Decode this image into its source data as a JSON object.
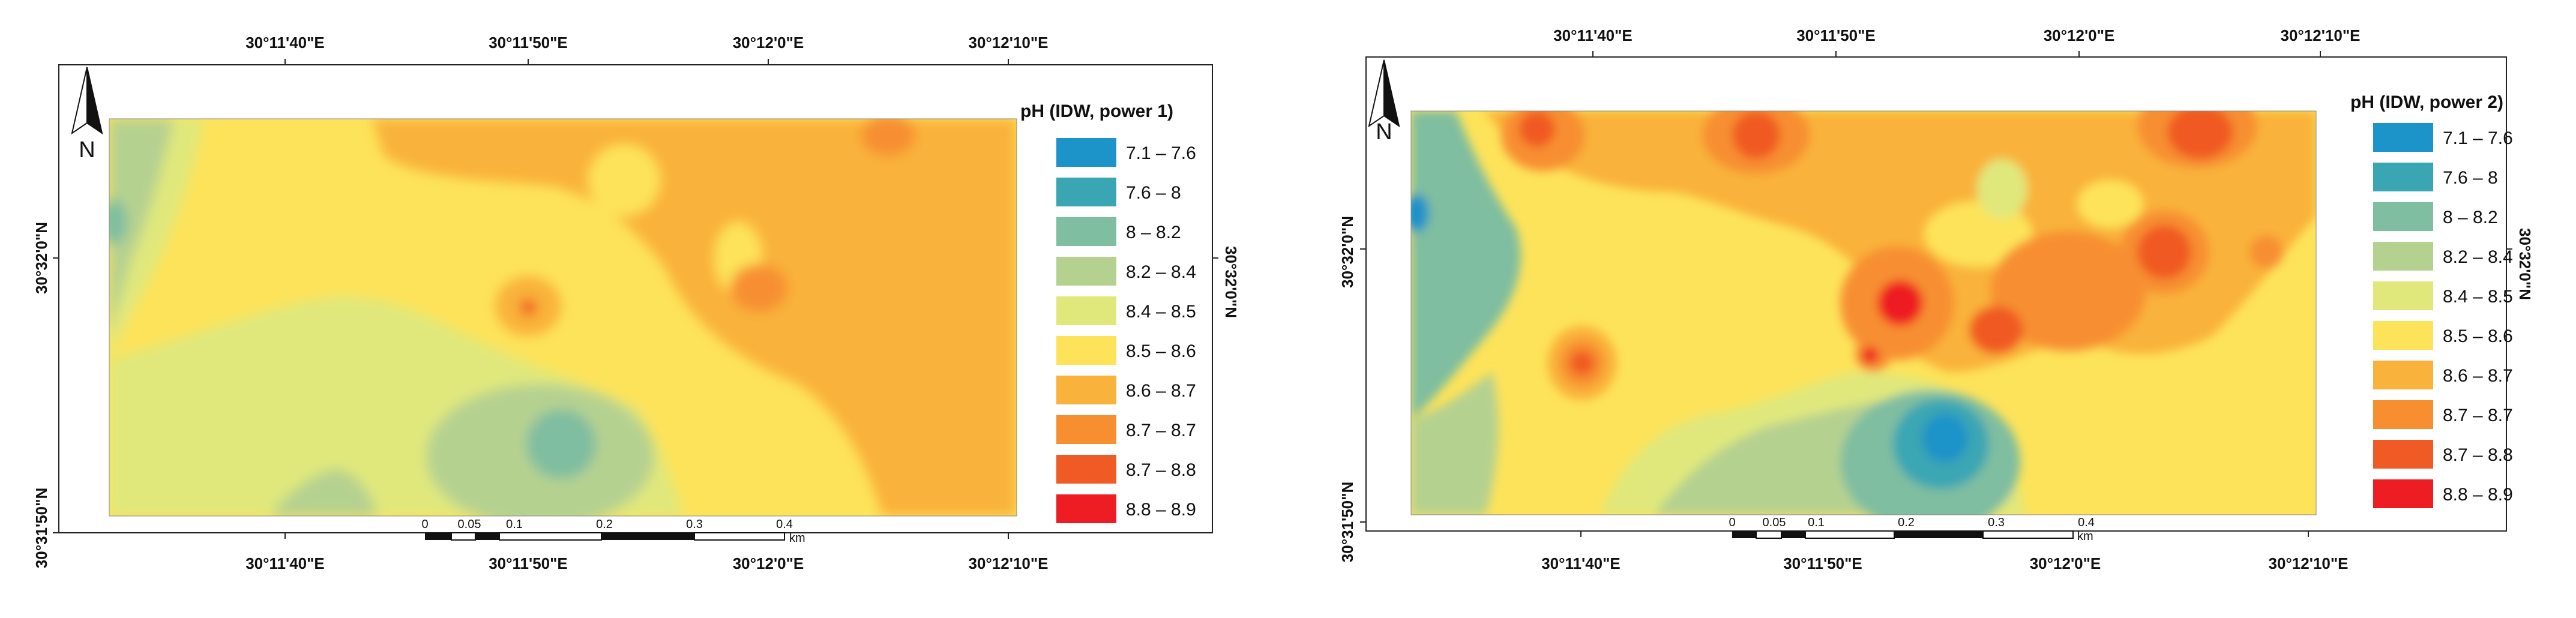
{
  "maps": [
    {
      "id": "map-1",
      "legend": {
        "title": "pH (IDW, power 1)",
        "classes": [
          {
            "label": "7.1 – 7.6",
            "color": "#1c93c9"
          },
          {
            "label": "7.6 – 8",
            "color": "#3aa6b4"
          },
          {
            "label": "8 – 8.2",
            "color": "#7fbea0"
          },
          {
            "label": "8.2 – 8.4",
            "color": "#b5d190"
          },
          {
            "label": "8.4 – 8.5",
            "color": "#e0e87c"
          },
          {
            "label": "8.5 – 8.6",
            "color": "#fde35a"
          },
          {
            "label": "8.6 – 8.7",
            "color": "#f9b23b"
          },
          {
            "label": "8.7 – 8.7",
            "color": "#f78f30"
          },
          {
            "label": "8.7 – 8.8",
            "color": "#f05a24"
          },
          {
            "label": "8.8 – 8.9",
            "color": "#ee1d23"
          }
        ]
      },
      "top_ticks": [
        "30°11'40\"E",
        "30°11'50\"E",
        "30°12'0\"E",
        "30°12'10\"E"
      ],
      "bottom_ticks": [
        "30°11'40\"E",
        "30°11'50\"E",
        "30°12'0\"E",
        "30°12'10\"E"
      ],
      "left_ticks": [
        "30°32'0\"N",
        "30°31'50\"N"
      ],
      "right_ticks": [
        "30°32'0\"N"
      ],
      "scale_labels": [
        "0",
        "0.05",
        "0.1",
        "0.2",
        "0.3",
        "0.4"
      ],
      "scale_unit": "km",
      "north_label": "N"
    },
    {
      "id": "map-2",
      "legend": {
        "title": "pH (IDW, power 2)",
        "classes": [
          {
            "label": "7.1 – 7.6",
            "color": "#1c93c9"
          },
          {
            "label": "7.6 – 8",
            "color": "#3aa6b4"
          },
          {
            "label": "8 – 8.2",
            "color": "#7fbea0"
          },
          {
            "label": "8.2 – 8.4",
            "color": "#b5d190"
          },
          {
            "label": "8.4 – 8.5",
            "color": "#e0e87c"
          },
          {
            "label": "8.5 – 8.6",
            "color": "#fde35a"
          },
          {
            "label": "8.6 – 8.7",
            "color": "#f9b23b"
          },
          {
            "label": "8.7 – 8.7",
            "color": "#f78f30"
          },
          {
            "label": "8.7 – 8.8",
            "color": "#f05a24"
          },
          {
            "label": "8.8 – 8.9",
            "color": "#ee1d23"
          }
        ]
      },
      "top_ticks": [
        "30°11'40\"E",
        "30°11'50\"E",
        "30°12'0\"E",
        "30°12'10\"E"
      ],
      "bottom_ticks": [
        "30°11'40\"E",
        "30°11'50\"E",
        "30°12'0\"E",
        "30°12'10\"E"
      ],
      "left_ticks": [
        "30°32'0\"N",
        "30°31'50\"N"
      ],
      "right_ticks": [
        "30°32'0\"N"
      ],
      "scale_labels": [
        "0",
        "0.05",
        "0.1",
        "0.2",
        "0.3",
        "0.4"
      ],
      "scale_unit": "km",
      "north_label": "N"
    }
  ]
}
